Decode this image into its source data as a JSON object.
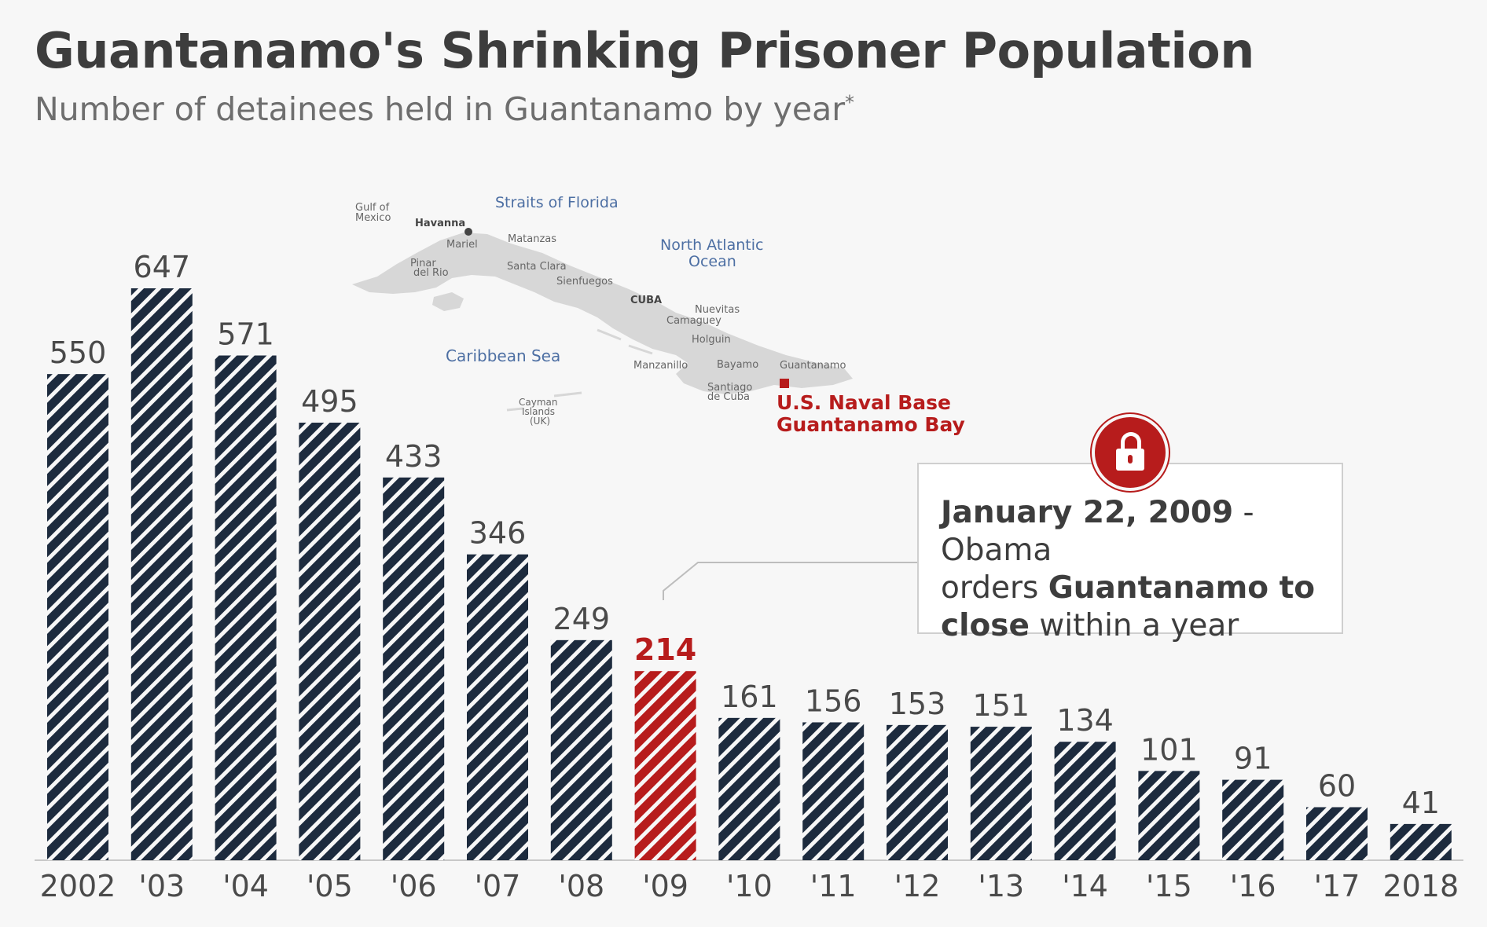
{
  "title": "Guantanamo's Shrinking Prisoner Population",
  "subtitle": "Number of detainees held in Guantanamo by year",
  "subtitle_mark": "*",
  "colors": {
    "bar": "#1d2b3e",
    "highlight": "#b71c1c",
    "label": "#4a4a4a",
    "map_land": "#d7d7d7",
    "map_water_label": "#4d6fa3"
  },
  "chart_data": {
    "type": "bar",
    "categories": [
      "2002",
      "'03",
      "'04",
      "'05",
      "'06",
      "'07",
      "'08",
      "'09",
      "'10",
      "'11",
      "'12",
      "'13",
      "'14",
      "'15",
      "'16",
      "'17",
      "2018"
    ],
    "values": [
      550,
      647,
      571,
      495,
      433,
      346,
      249,
      214,
      161,
      156,
      153,
      151,
      134,
      101,
      91,
      60,
      41
    ],
    "highlight": "'09",
    "ylim": [
      0,
      647
    ],
    "grid": false,
    "pattern": "diagonal-stripes"
  },
  "callout": {
    "date": "January 22, 2009",
    "sep": " - Obama",
    "line2_plain": "orders ",
    "line2_bold": "Guantanamo to",
    "line3_bold": "close",
    "line3_plain": " within a year",
    "icon": "lock-icon"
  },
  "map": {
    "water_labels": [
      "Straits of Florida",
      "North Atlantic",
      "Ocean",
      "Caribbean Sea"
    ],
    "gulf_labels": [
      "Gulf of",
      "Mexico"
    ],
    "country": "CUBA",
    "cities": [
      "Havanna",
      "Mariel",
      "Matanzas",
      "Pinar",
      "del Rio",
      "Santa Clara",
      "Sienfuegos",
      "Nuevitas",
      "Camaguey",
      "Holguin",
      "Manzanillo",
      "Bayamo",
      "Santiago",
      "de Cuba",
      "Guantanamo"
    ],
    "cayman": [
      "Cayman",
      "Islands",
      "(UK)"
    ],
    "base_label": [
      "U.S. Naval Base",
      "Guantanamo Bay"
    ]
  }
}
